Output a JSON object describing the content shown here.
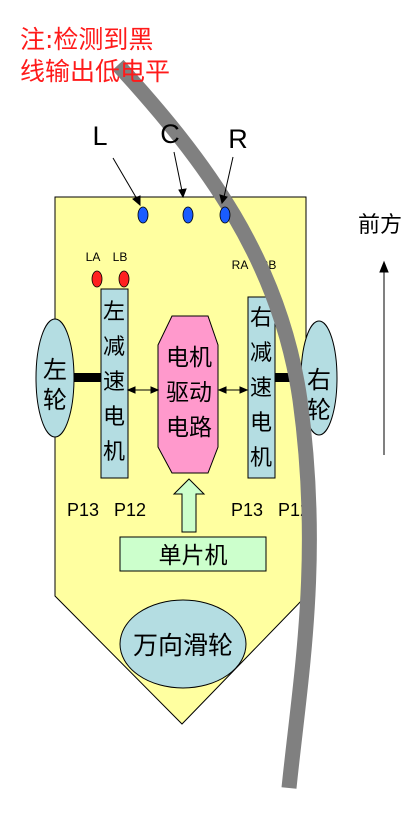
{
  "note": {
    "line1": "注:检测到黑",
    "line2": "线输出低电平"
  },
  "sensors": {
    "left": "L",
    "center": "C",
    "right": "R"
  },
  "direction": {
    "label": "前方"
  },
  "wheels": {
    "left": [
      "左",
      "轮"
    ],
    "right": [
      "右",
      "轮"
    ]
  },
  "motors": {
    "left": {
      "chars": [
        "左",
        "减",
        "速",
        "电",
        "机"
      ],
      "port_a": "LA",
      "port_b": "LB",
      "pin_left": "P13",
      "pin_right": "P12"
    },
    "right": {
      "chars": [
        "右",
        "减",
        "速",
        "电",
        "机"
      ],
      "port_a": "RA",
      "port_b": "RB",
      "pin_left": "P13",
      "pin_right": "P12"
    }
  },
  "driver": {
    "lines": [
      "电机",
      "驱动",
      "电路"
    ]
  },
  "mcu": {
    "label": "单片机"
  },
  "caster": {
    "label": "万向滑轮"
  },
  "colors": {
    "body": "#ffffa0",
    "light_blue": "#b4dde2",
    "light_green": "#ccffcc",
    "pink": "#ff99cc",
    "sensor_blue": "#1a5cff",
    "led_red": "#ff2020",
    "track_gray": "#808080",
    "note_red": "#ff1a1a"
  }
}
